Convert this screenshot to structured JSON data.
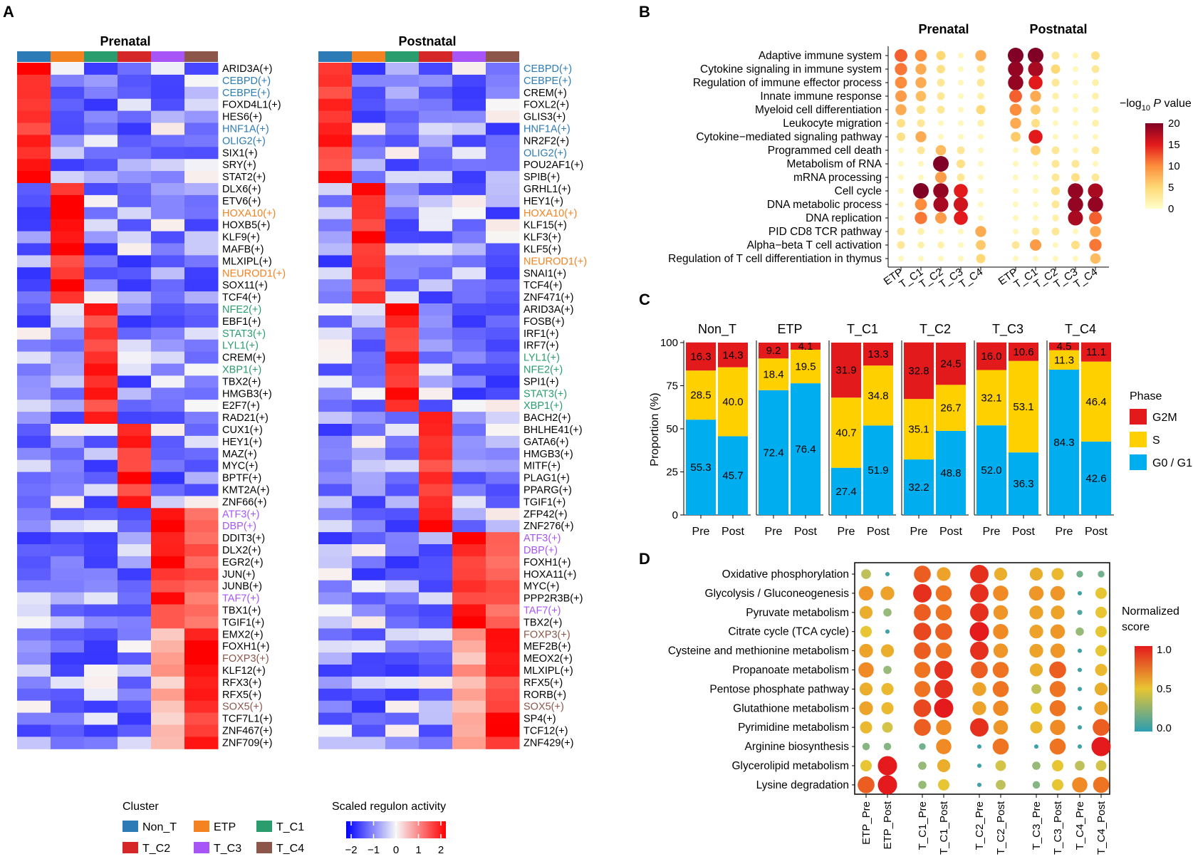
{
  "colors": {
    "Non_T": "#2c7bb6",
    "ETP": "#f58220",
    "T_C1": "#2a9d6e",
    "T_C2": "#d62728",
    "T_C3": "#a855f7",
    "T_C4": "#8c564b",
    "G2M": "#e31a1c",
    "S": "#ffd000",
    "G0G1": "#00aeef"
  },
  "panel_labels": {
    "a": "A",
    "b": "B",
    "c": "C",
    "d": "D"
  },
  "chart_data": [
    {
      "panel": "A",
      "type": "heatmap",
      "subtitle_pre": "Prenatal",
      "subtitle_post": "Postnatal",
      "clusters": [
        "Non_T",
        "ETP",
        "T_C1",
        "T_C2",
        "T_C3",
        "T_C4"
      ],
      "prenatal_labels": [
        [
          "ARID3A(+)",
          "k"
        ],
        [
          "CEBPD(+)",
          "Non_T"
        ],
        [
          "CEBPE(+)",
          "Non_T"
        ],
        [
          "FOXD4L1(+)",
          "k"
        ],
        [
          "HES6(+)",
          "k"
        ],
        [
          "HNF1A(+)",
          "Non_T"
        ],
        [
          "OLIG2(+)",
          "Non_T"
        ],
        [
          "SIX1(+)",
          "k"
        ],
        [
          "SRY(+)",
          "k"
        ],
        [
          "STAT2(+)",
          "k"
        ],
        [
          "DLX6(+)",
          "k"
        ],
        [
          "ETV6(+)",
          "k"
        ],
        [
          "HOXA10(+)",
          "ETP"
        ],
        [
          "HOXB5(+)",
          "k"
        ],
        [
          "KLF9(+)",
          "k"
        ],
        [
          "MAFB(+)",
          "k"
        ],
        [
          "MLXIPL(+)",
          "k"
        ],
        [
          "NEUROD1(+)",
          "ETP"
        ],
        [
          "SOX11(+)",
          "k"
        ],
        [
          "TCF4(+)",
          "k"
        ],
        [
          "NFE2(+)",
          "T_C1"
        ],
        [
          "EBF1(+)",
          "k"
        ],
        [
          "STAT3(+)",
          "T_C1"
        ],
        [
          "LYL1(+)",
          "T_C1"
        ],
        [
          "CREM(+)",
          "k"
        ],
        [
          "XBP1(+)",
          "T_C1"
        ],
        [
          "TBX2(+)",
          "k"
        ],
        [
          "HMGB3(+)",
          "k"
        ],
        [
          "E2F7(+)",
          "k"
        ],
        [
          "RAD21(+)",
          "k"
        ],
        [
          "CUX1(+)",
          "k"
        ],
        [
          "HEY1(+)",
          "k"
        ],
        [
          "MAZ(+)",
          "k"
        ],
        [
          "MYC(+)",
          "k"
        ],
        [
          "BPTF(+)",
          "k"
        ],
        [
          "KMT2A(+)",
          "k"
        ],
        [
          "ZNF66(+)",
          "k"
        ],
        [
          "ATF3(+)",
          "T_C3"
        ],
        [
          "DBP(+)",
          "T_C3"
        ],
        [
          "DDIT3(+)",
          "k"
        ],
        [
          "DLX2(+)",
          "k"
        ],
        [
          "EGR2(+)",
          "k"
        ],
        [
          "JUN(+)",
          "k"
        ],
        [
          "JUNB(+)",
          "k"
        ],
        [
          "TAF7(+)",
          "T_C3"
        ],
        [
          "TBX1(+)",
          "k"
        ],
        [
          "TGIF1(+)",
          "k"
        ],
        [
          "EMX2(+)",
          "k"
        ],
        [
          "FOXH1(+)",
          "k"
        ],
        [
          "FOXP3(+)",
          "T_C4"
        ],
        [
          "KLF12(+)",
          "k"
        ],
        [
          "RFX3(+)",
          "k"
        ],
        [
          "RFX5(+)",
          "k"
        ],
        [
          "SOX5(+)",
          "T_C4"
        ],
        [
          "TCF7L1(+)",
          "k"
        ],
        [
          "ZNF467(+)",
          "k"
        ],
        [
          "ZNF709(+)",
          "k"
        ]
      ],
      "postnatal_labels": [
        [
          "CEBPD(+)",
          "Non_T"
        ],
        [
          "CEBPE(+)",
          "Non_T"
        ],
        [
          "CREM(+)",
          "k"
        ],
        [
          "FOXL2(+)",
          "k"
        ],
        [
          "GLIS3(+)",
          "k"
        ],
        [
          "HNF1A(+)",
          "Non_T"
        ],
        [
          "NR2F2(+)",
          "k"
        ],
        [
          "OLIG2(+)",
          "Non_T"
        ],
        [
          "POU2AF1(+)",
          "k"
        ],
        [
          "SPIB(+)",
          "k"
        ],
        [
          "GRHL1(+)",
          "k"
        ],
        [
          "HEY1(+)",
          "k"
        ],
        [
          "HOXA10(+)",
          "ETP"
        ],
        [
          "KLF15(+)",
          "k"
        ],
        [
          "KLF3(+)",
          "k"
        ],
        [
          "KLF5(+)",
          "k"
        ],
        [
          "NEUROD1(+)",
          "ETP"
        ],
        [
          "SNAI1(+)",
          "k"
        ],
        [
          "TCF4(+)",
          "k"
        ],
        [
          "ZNF471(+)",
          "k"
        ],
        [
          "ARID3A(+)",
          "k"
        ],
        [
          "FOSB(+)",
          "k"
        ],
        [
          "IRF1(+)",
          "k"
        ],
        [
          "IRF7(+)",
          "k"
        ],
        [
          "LYL1(+)",
          "T_C1"
        ],
        [
          "NFE2(+)",
          "T_C1"
        ],
        [
          "SPI1(+)",
          "k"
        ],
        [
          "STAT3(+)",
          "T_C1"
        ],
        [
          "XBP1(+)",
          "T_C1"
        ],
        [
          "BACH2(+)",
          "k"
        ],
        [
          "BHLHE41(+)",
          "k"
        ],
        [
          "GATA6(+)",
          "k"
        ],
        [
          "HMGB3(+)",
          "k"
        ],
        [
          "MITF(+)",
          "k"
        ],
        [
          "PLAG1(+)",
          "k"
        ],
        [
          "PPARG(+)",
          "k"
        ],
        [
          "TGIF1(+)",
          "k"
        ],
        [
          "ZFP42(+)",
          "k"
        ],
        [
          "ZNF276(+)",
          "k"
        ],
        [
          "ATF3(+)",
          "T_C3"
        ],
        [
          "DBP(+)",
          "T_C3"
        ],
        [
          "FOXH1(+)",
          "k"
        ],
        [
          "HOXA11(+)",
          "k"
        ],
        [
          "MYC(+)",
          "k"
        ],
        [
          "PPP2R3B(+)",
          "k"
        ],
        [
          "TAF7(+)",
          "T_C3"
        ],
        [
          "TBX2(+)",
          "k"
        ],
        [
          "FOXP3(+)",
          "T_C4"
        ],
        [
          "MEF2B(+)",
          "k"
        ],
        [
          "MEOX2(+)",
          "k"
        ],
        [
          "MLXIPL(+)",
          "k"
        ],
        [
          "RFX5(+)",
          "k"
        ],
        [
          "RORB(+)",
          "k"
        ],
        [
          "SOX5(+)",
          "T_C4"
        ],
        [
          "SP4(+)",
          "k"
        ],
        [
          "TCF12(+)",
          "k"
        ],
        [
          "ZNF429(+)",
          "k"
        ]
      ],
      "prenatal_groups": [
        [
          0,
          10
        ],
        [
          10,
          20
        ],
        [
          20,
          30
        ],
        [
          30,
          37
        ],
        [
          37,
          47
        ],
        [
          47,
          57
        ]
      ],
      "postnatal_groups": [
        [
          0,
          10
        ],
        [
          10,
          20
        ],
        [
          20,
          29
        ],
        [
          29,
          39
        ],
        [
          39,
          47
        ],
        [
          47,
          57
        ]
      ],
      "legend_cluster_title": "Cluster",
      "legend_clusters": [
        "Non_T",
        "ETP",
        "T_C1",
        "T_C2",
        "T_C3",
        "T_C4"
      ],
      "legend_scale_title": "Scaled regulon activity",
      "scale_range": [
        -2,
        2
      ],
      "scale_ticks": [
        "−2",
        "−1",
        "0",
        "1",
        "2"
      ]
    },
    {
      "panel": "B",
      "type": "scatter",
      "subtitle_pre": "Prenatal",
      "subtitle_post": "Postnatal",
      "pathways": [
        "Adaptive immune system",
        "Cytokine signaling in immune system",
        "Regulation of immune effector process",
        "Innate immune response",
        "Myeloid cell differentiation",
        "Leukocyte migration",
        "Cytokine−mediated signaling pathway",
        "Programmed cell death",
        "Metabolism of RNA",
        "mRNA processing",
        "Cell cycle",
        "DNA metabolic process",
        "DNA replication",
        "PID CD8 TCR pathway",
        "Alpha−beta T cell activation",
        "Regulation of T cell differentiation in thymus"
      ],
      "groups": [
        "ETP",
        "T_C1",
        "T_C2",
        "T_C3",
        "T_C4"
      ],
      "prenatal_values": [
        [
          12,
          10,
          5,
          1,
          8
        ],
        [
          11,
          8,
          4,
          1,
          3
        ],
        [
          10,
          8,
          3,
          1,
          3
        ],
        [
          9,
          7,
          3,
          1,
          2
        ],
        [
          8,
          4,
          3,
          1,
          5
        ],
        [
          4,
          3,
          1,
          1,
          2
        ],
        [
          4,
          8,
          1,
          1,
          1
        ],
        [
          1,
          3,
          7,
          3,
          1
        ],
        [
          1,
          1,
          20,
          4,
          1
        ],
        [
          1,
          1,
          9,
          3,
          1
        ],
        [
          1,
          20,
          19,
          15,
          1
        ],
        [
          1,
          10,
          18,
          16,
          1
        ],
        [
          1,
          11,
          9,
          15,
          1
        ],
        [
          3,
          2,
          1,
          1,
          8
        ],
        [
          3,
          2,
          2,
          1,
          6
        ],
        [
          1,
          1,
          1,
          1,
          5
        ]
      ],
      "postnatal_values": [
        [
          20,
          20,
          3,
          1,
          4
        ],
        [
          19,
          18,
          5,
          1,
          3
        ],
        [
          19,
          15,
          3,
          1,
          2
        ],
        [
          12,
          8,
          2,
          1,
          2
        ],
        [
          10,
          6,
          2,
          1,
          2
        ],
        [
          8,
          4,
          1,
          1,
          2
        ],
        [
          6,
          15,
          1,
          1,
          1
        ],
        [
          1,
          6,
          3,
          1,
          3
        ],
        [
          1,
          1,
          3,
          3,
          1
        ],
        [
          1,
          1,
          3,
          4,
          3
        ],
        [
          1,
          1,
          4,
          19,
          18
        ],
        [
          1,
          1,
          3,
          19,
          19
        ],
        [
          1,
          1,
          2,
          18,
          12
        ],
        [
          1,
          3,
          3,
          1,
          8
        ],
        [
          3,
          9,
          1,
          4,
          11
        ],
        [
          1,
          1,
          1,
          1,
          7
        ]
      ],
      "legend_title_prefix": "−log",
      "legend_title_sub": "10",
      "legend_title_italic": "P",
      "legend_title_suffix": "value",
      "legend_ticks": [
        "20",
        "15",
        "10",
        "5",
        "0"
      ],
      "scale_range": [
        0,
        20
      ]
    },
    {
      "panel": "C",
      "type": "bar",
      "stacked": true,
      "ylabel": "Proportion (%)",
      "yticks": [
        "0",
        "25",
        "50",
        "75",
        "100"
      ],
      "facets": [
        "Non_T",
        "ETP",
        "T_C1",
        "T_C2",
        "T_C3",
        "T_C4"
      ],
      "categories": [
        "Pre",
        "Post"
      ],
      "series": [
        {
          "name": "G0 / G1",
          "values": [
            [
              55.3,
              45.7
            ],
            [
              72.4,
              76.4
            ],
            [
              27.4,
              51.9
            ],
            [
              32.2,
              48.8
            ],
            [
              52.0,
              36.3
            ],
            [
              84.3,
              42.6
            ]
          ]
        },
        {
          "name": "S",
          "values": [
            [
              28.5,
              40.0
            ],
            [
              18.4,
              19.5
            ],
            [
              40.7,
              34.8
            ],
            [
              35.1,
              26.7
            ],
            [
              32.1,
              53.1
            ],
            [
              11.3,
              46.4
            ]
          ]
        },
        {
          "name": "G2M",
          "values": [
            [
              16.3,
              14.3
            ],
            [
              9.2,
              4.1
            ],
            [
              31.9,
              13.3
            ],
            [
              32.8,
              24.5
            ],
            [
              16.0,
              10.6
            ],
            [
              4.5,
              11.1
            ]
          ]
        }
      ],
      "labels": {
        "G0 / G1": [
          [
            "55.3",
            "45.7"
          ],
          [
            "72.4",
            "76.4"
          ],
          [
            "27.4",
            "51.9"
          ],
          [
            "32.2",
            "48.8"
          ],
          [
            "52.0",
            "36.3"
          ],
          [
            "84.3",
            "42.6"
          ]
        ],
        "S": [
          [
            "28.5",
            "40.0"
          ],
          [
            "18.4",
            "19.5"
          ],
          [
            "40.7",
            "34.8"
          ],
          [
            "35.1",
            "26.7"
          ],
          [
            "32.1",
            "53.1"
          ],
          [
            "11.3",
            "46.4"
          ]
        ],
        "G2M": [
          [
            "16.3",
            "14.3"
          ],
          [
            "9.2",
            "4.1"
          ],
          [
            "31.9",
            "13.3"
          ],
          [
            "32.8",
            "24.5"
          ],
          [
            "16.0",
            "10.6"
          ],
          [
            "4.5",
            "11.1"
          ]
        ]
      },
      "legend_title": "Phase",
      "legend_items": [
        "G2M",
        "S",
        "G0 / G1"
      ]
    },
    {
      "panel": "D",
      "type": "scatter",
      "pathways": [
        "Oxidative phosphorylation",
        "Glycolysis / Gluconeogenesis",
        "Pyruvate metabolism",
        "Citrate cycle (TCA cycle)",
        "Cysteine and methionine metabolism",
        "Propanoate metabolism",
        "Pentose phosphate pathway",
        "Glutathione metabolism",
        "Pyrimidine metabolism",
        "Arginine biosynthesis",
        "Glycerolipid metabolism",
        "Lysine degradation"
      ],
      "groups": [
        "ETP_Pre",
        "ETP_Post",
        "T_C1_Pre",
        "T_C1_Post",
        "T_C2_Pre",
        "T_C2_Post",
        "T_C3_Pre",
        "T_C3_Post",
        "T_C4_Pre",
        "T_C4_Post"
      ],
      "values": [
        [
          0.4,
          0.05,
          0.85,
          0.65,
          0.95,
          0.6,
          0.6,
          0.55,
          0.2,
          0.2
        ],
        [
          0.7,
          0.65,
          0.95,
          0.8,
          0.95,
          0.75,
          0.7,
          0.7,
          0.05,
          0.5
        ],
        [
          0.6,
          0.3,
          0.85,
          0.8,
          0.95,
          0.7,
          0.65,
          0.65,
          0.1,
          0.5
        ],
        [
          0.5,
          0.05,
          0.9,
          0.85,
          1.0,
          0.75,
          0.65,
          0.7,
          0.3,
          0.5
        ],
        [
          0.65,
          0.6,
          0.85,
          0.8,
          0.95,
          0.7,
          0.65,
          0.7,
          0.05,
          0.5
        ],
        [
          0.75,
          0.3,
          0.8,
          0.95,
          0.85,
          0.8,
          0.6,
          0.85,
          0.05,
          0.55
        ],
        [
          0.6,
          0.55,
          0.8,
          0.95,
          0.65,
          0.8,
          0.4,
          0.8,
          0.05,
          0.6
        ],
        [
          0.65,
          0.55,
          0.9,
          1.0,
          0.65,
          0.75,
          0.5,
          0.8,
          0.05,
          0.65
        ],
        [
          0.55,
          0.45,
          0.85,
          0.75,
          0.95,
          0.7,
          0.55,
          0.75,
          0.05,
          0.85
        ],
        [
          0.25,
          0.25,
          0.2,
          0.75,
          0.05,
          0.8,
          0.05,
          0.8,
          0.05,
          1.0
        ],
        [
          0.5,
          1.0,
          0.3,
          0.6,
          0.05,
          0.45,
          0.3,
          0.5,
          0.4,
          0.45
        ],
        [
          0.85,
          1.0,
          0.3,
          0.5,
          0.05,
          0.4,
          0.25,
          0.5,
          0.75,
          0.8
        ]
      ],
      "legend_title_line1": "Normalized",
      "legend_title_line2": "score",
      "legend_ticks": [
        "1.0",
        "0.5",
        "0.0"
      ],
      "scale_range": [
        0,
        1
      ]
    }
  ]
}
